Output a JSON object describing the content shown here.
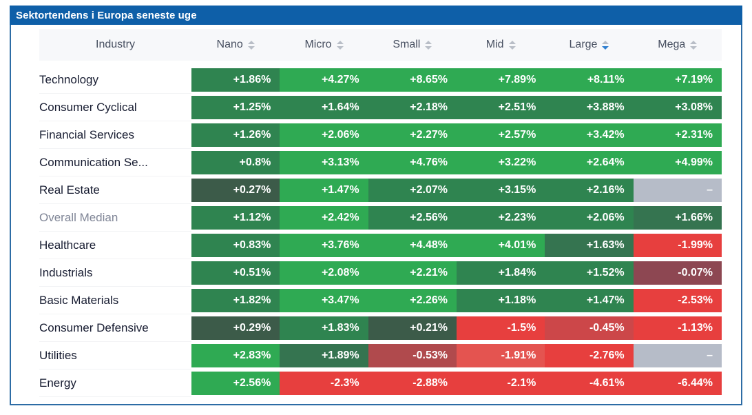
{
  "title": "Sektortendens i Europa seneste uge",
  "colors": {
    "title_bar": "#0e5fa8",
    "border": "#2d6ca5",
    "header_bg": "#f7f8fa",
    "header_text": "#474f60",
    "row_label": "#161b30",
    "muted_label": "#7f8596",
    "cell_text": "#ffffff",
    "sort_icon": "#b9bec7",
    "sort_active": "#2f7fd0",
    "tones": {
      "g-dark": "#3c5b49",
      "g-deep": "#357450",
      "g-med": "#2f8450",
      "g-bright": "#2faa53",
      "r-maroon": "#8d4752",
      "r-mut": "#b04a4d",
      "r-med": "#cc4749",
      "r-soft": "#e45450",
      "r-bright": "#e73f3e",
      "gray": "#b6bcc8"
    }
  },
  "table": {
    "label_header": "Industry",
    "columns": [
      {
        "label": "Nano",
        "sort": "none"
      },
      {
        "label": "Micro",
        "sort": "none"
      },
      {
        "label": "Small",
        "sort": "none"
      },
      {
        "label": "Mid",
        "sort": "none"
      },
      {
        "label": "Large",
        "sort": "desc"
      },
      {
        "label": "Mega",
        "sort": "none"
      }
    ],
    "rows": [
      {
        "label": "Technology",
        "muted": false,
        "cells": [
          {
            "text": "+1.86%",
            "tone": "g-med"
          },
          {
            "text": "+4.27%",
            "tone": "g-bright"
          },
          {
            "text": "+8.65%",
            "tone": "g-bright"
          },
          {
            "text": "+7.89%",
            "tone": "g-bright"
          },
          {
            "text": "+8.11%",
            "tone": "g-bright"
          },
          {
            "text": "+7.19%",
            "tone": "g-bright"
          }
        ]
      },
      {
        "label": "Consumer Cyclical",
        "muted": false,
        "cells": [
          {
            "text": "+1.25%",
            "tone": "g-med"
          },
          {
            "text": "+1.64%",
            "tone": "g-med"
          },
          {
            "text": "+2.18%",
            "tone": "g-med"
          },
          {
            "text": "+2.51%",
            "tone": "g-med"
          },
          {
            "text": "+3.88%",
            "tone": "g-med"
          },
          {
            "text": "+3.08%",
            "tone": "g-med"
          }
        ]
      },
      {
        "label": "Financial Services",
        "muted": false,
        "cells": [
          {
            "text": "+1.26%",
            "tone": "g-med"
          },
          {
            "text": "+2.06%",
            "tone": "g-bright"
          },
          {
            "text": "+2.27%",
            "tone": "g-bright"
          },
          {
            "text": "+2.57%",
            "tone": "g-bright"
          },
          {
            "text": "+3.42%",
            "tone": "g-bright"
          },
          {
            "text": "+2.31%",
            "tone": "g-bright"
          }
        ]
      },
      {
        "label": "Communication Se...",
        "muted": false,
        "cells": [
          {
            "text": "+0.8%",
            "tone": "g-med"
          },
          {
            "text": "+3.13%",
            "tone": "g-bright"
          },
          {
            "text": "+4.76%",
            "tone": "g-bright"
          },
          {
            "text": "+3.22%",
            "tone": "g-bright"
          },
          {
            "text": "+2.64%",
            "tone": "g-bright"
          },
          {
            "text": "+4.99%",
            "tone": "g-bright"
          }
        ]
      },
      {
        "label": "Real Estate",
        "muted": false,
        "cells": [
          {
            "text": "+0.27%",
            "tone": "g-dark"
          },
          {
            "text": "+1.47%",
            "tone": "g-bright"
          },
          {
            "text": "+2.07%",
            "tone": "g-med"
          },
          {
            "text": "+3.15%",
            "tone": "g-med"
          },
          {
            "text": "+2.16%",
            "tone": "g-med"
          },
          {
            "text": "–",
            "tone": "gray"
          }
        ]
      },
      {
        "label": "Overall Median",
        "muted": true,
        "cells": [
          {
            "text": "+1.12%",
            "tone": "g-med"
          },
          {
            "text": "+2.42%",
            "tone": "g-bright"
          },
          {
            "text": "+2.56%",
            "tone": "g-med"
          },
          {
            "text": "+2.23%",
            "tone": "g-med"
          },
          {
            "text": "+2.06%",
            "tone": "g-med"
          },
          {
            "text": "+1.66%",
            "tone": "g-deep"
          }
        ]
      },
      {
        "label": "Healthcare",
        "muted": false,
        "cells": [
          {
            "text": "+0.83%",
            "tone": "g-med"
          },
          {
            "text": "+3.76%",
            "tone": "g-bright"
          },
          {
            "text": "+4.48%",
            "tone": "g-bright"
          },
          {
            "text": "+4.01%",
            "tone": "g-bright"
          },
          {
            "text": "+1.63%",
            "tone": "g-deep"
          },
          {
            "text": "-1.99%",
            "tone": "r-bright"
          }
        ]
      },
      {
        "label": "Industrials",
        "muted": false,
        "cells": [
          {
            "text": "+0.51%",
            "tone": "g-med"
          },
          {
            "text": "+2.08%",
            "tone": "g-bright"
          },
          {
            "text": "+2.21%",
            "tone": "g-bright"
          },
          {
            "text": "+1.84%",
            "tone": "g-med"
          },
          {
            "text": "+1.52%",
            "tone": "g-med"
          },
          {
            "text": "-0.07%",
            "tone": "r-maroon"
          }
        ]
      },
      {
        "label": "Basic Materials",
        "muted": false,
        "cells": [
          {
            "text": "+1.82%",
            "tone": "g-med"
          },
          {
            "text": "+3.47%",
            "tone": "g-bright"
          },
          {
            "text": "+2.26%",
            "tone": "g-bright"
          },
          {
            "text": "+1.18%",
            "tone": "g-med"
          },
          {
            "text": "+1.47%",
            "tone": "g-med"
          },
          {
            "text": "-2.53%",
            "tone": "r-bright"
          }
        ]
      },
      {
        "label": "Consumer Defensive",
        "muted": false,
        "cells": [
          {
            "text": "+0.29%",
            "tone": "g-dark"
          },
          {
            "text": "+1.83%",
            "tone": "g-med"
          },
          {
            "text": "+0.21%",
            "tone": "g-dark"
          },
          {
            "text": "-1.5%",
            "tone": "r-bright"
          },
          {
            "text": "-0.45%",
            "tone": "r-med"
          },
          {
            "text": "-1.13%",
            "tone": "r-bright"
          }
        ]
      },
      {
        "label": "Utilities",
        "muted": false,
        "cells": [
          {
            "text": "+2.83%",
            "tone": "g-bright"
          },
          {
            "text": "+1.89%",
            "tone": "g-deep"
          },
          {
            "text": "-0.53%",
            "tone": "r-mut"
          },
          {
            "text": "-1.91%",
            "tone": "r-soft"
          },
          {
            "text": "-2.76%",
            "tone": "r-bright"
          },
          {
            "text": "–",
            "tone": "gray"
          }
        ]
      },
      {
        "label": "Energy",
        "muted": false,
        "cells": [
          {
            "text": "+2.56%",
            "tone": "g-bright"
          },
          {
            "text": "-2.3%",
            "tone": "r-bright"
          },
          {
            "text": "-2.88%",
            "tone": "r-bright"
          },
          {
            "text": "-2.1%",
            "tone": "r-bright"
          },
          {
            "text": "-4.61%",
            "tone": "r-bright"
          },
          {
            "text": "-6.44%",
            "tone": "r-bright"
          }
        ]
      }
    ]
  },
  "chart_data": {
    "type": "heatmap",
    "title": "Sektortendens i Europa seneste uge",
    "x_categories": [
      "Nano",
      "Micro",
      "Small",
      "Mid",
      "Large",
      "Mega"
    ],
    "y_categories": [
      "Technology",
      "Consumer Cyclical",
      "Financial Services",
      "Communication Se...",
      "Real Estate",
      "Overall Median",
      "Healthcare",
      "Industrials",
      "Basic Materials",
      "Consumer Defensive",
      "Utilities",
      "Energy"
    ],
    "values_pct": [
      [
        1.86,
        4.27,
        8.65,
        7.89,
        8.11,
        7.19
      ],
      [
        1.25,
        1.64,
        2.18,
        2.51,
        3.88,
        3.08
      ],
      [
        1.26,
        2.06,
        2.27,
        2.57,
        3.42,
        2.31
      ],
      [
        0.8,
        3.13,
        4.76,
        3.22,
        2.64,
        4.99
      ],
      [
        0.27,
        1.47,
        2.07,
        3.15,
        2.16,
        null
      ],
      [
        1.12,
        2.42,
        2.56,
        2.23,
        2.06,
        1.66
      ],
      [
        0.83,
        3.76,
        4.48,
        4.01,
        1.63,
        -1.99
      ],
      [
        0.51,
        2.08,
        2.21,
        1.84,
        1.52,
        -0.07
      ],
      [
        1.82,
        3.47,
        2.26,
        1.18,
        1.47,
        -2.53
      ],
      [
        0.29,
        1.83,
        0.21,
        -1.5,
        -0.45,
        -1.13
      ],
      [
        2.83,
        1.89,
        -0.53,
        -1.91,
        -2.76,
        null
      ],
      [
        2.56,
        -2.3,
        -2.88,
        -2.1,
        -4.61,
        -6.44
      ]
    ],
    "color_scale": "green = positive weekly change, red = negative, gray = no data",
    "sorted_by": "Large descending",
    "grid": false,
    "legend_position": "none"
  }
}
